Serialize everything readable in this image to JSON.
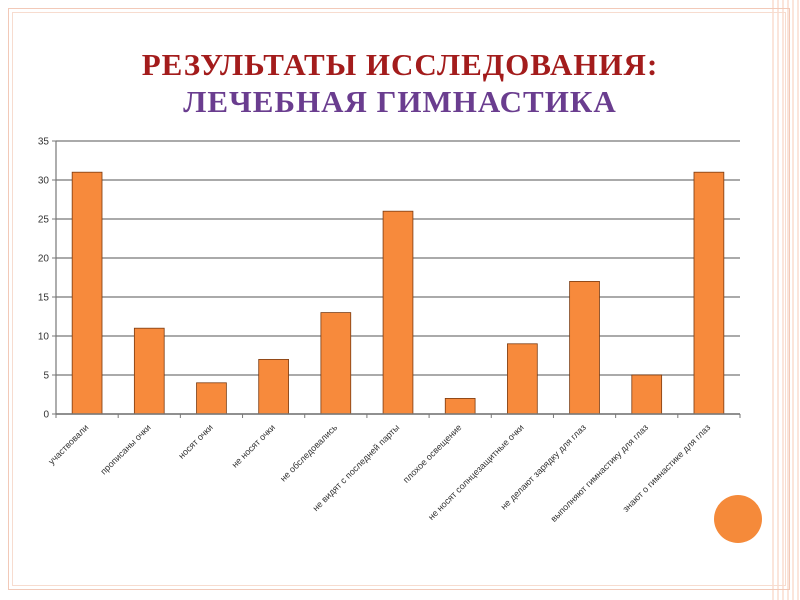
{
  "slide": {
    "title_line1": "РЕЗУЛЬТАТЫ ИССЛЕДОВАНИЯ:",
    "title_line2": "ЛЕЧЕБНАЯ ГИМНАСТИКА"
  },
  "colors": {
    "title1": "#a31c1c",
    "title2": "#6a3d8f",
    "bar_fill": "#f78a3c",
    "bar_stroke": "#7a3a10",
    "accent_circle": "#f58a3a",
    "grid": "#777777"
  },
  "chart_data": {
    "type": "bar",
    "categories": [
      "участвовали",
      "прописаны очки",
      "носят очки",
      "не носят очки",
      "не обследовались",
      "не видят с последней парты",
      "плохое освещение",
      "не носят солнцезащитные очки",
      "не делают зарядку для глаз",
      "выполняют гимнастику для глаз",
      "знают о гимнастике для глаз"
    ],
    "values": [
      31,
      11,
      4,
      7,
      13,
      26,
      2,
      9,
      17,
      5,
      31
    ],
    "yticks": [
      0,
      5,
      10,
      15,
      20,
      25,
      30,
      35
    ],
    "ylim": [
      0,
      35
    ],
    "grid": true,
    "legend": "none"
  }
}
